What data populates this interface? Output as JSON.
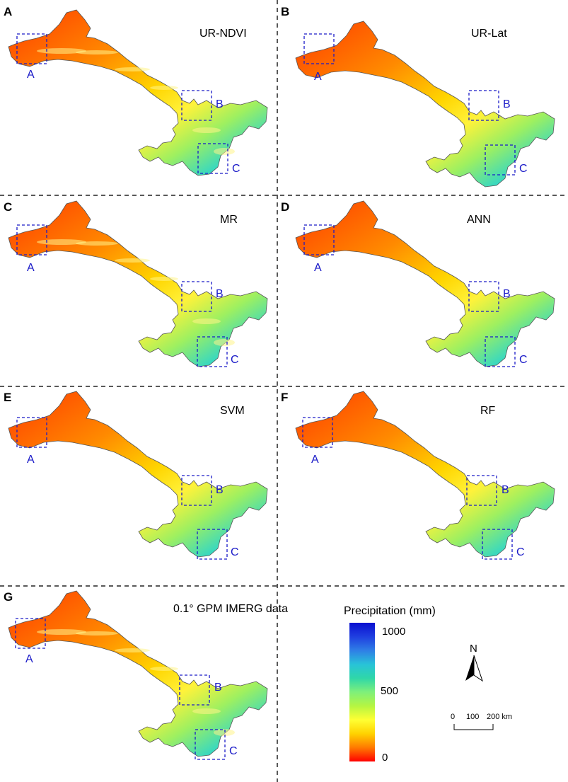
{
  "panels": [
    {
      "letter": "A",
      "title": "UR-NDVI",
      "shift": 0.1,
      "speckle": true
    },
    {
      "letter": "B",
      "title": "UR-Lat",
      "shift": 0.0,
      "speckle": false
    },
    {
      "letter": "C",
      "title": "MR",
      "shift": 0.08,
      "speckle": true
    },
    {
      "letter": "D",
      "title": "ANN",
      "shift": 0.04,
      "speckle": false
    },
    {
      "letter": "E",
      "title": "SVM",
      "shift": 0.03,
      "speckle": false
    },
    {
      "letter": "F",
      "title": "RF",
      "shift": 0.02,
      "speckle": false
    },
    {
      "letter": "G",
      "title": "0.1° GPM IMERG data",
      "shift": 0.05,
      "speckle": true
    }
  ],
  "box_labels": [
    "A",
    "B",
    "C"
  ],
  "legend": {
    "title": "Precipitation (mm)",
    "ticks": [
      {
        "label": "1000",
        "value": 1000
      },
      {
        "label": "500",
        "value": 500
      },
      {
        "label": "0",
        "value": 0
      }
    ],
    "colors": [
      "#ff0000",
      "#ff7a00",
      "#ffd200",
      "#ffff33",
      "#b5f542",
      "#7ff07a",
      "#2fd7a8",
      "#28c3d8",
      "#2f7fe6",
      "#1f3fe0",
      "#0a10d0"
    ]
  },
  "north_arrow": {
    "label": "N"
  },
  "scale_bar": {
    "labels": [
      "0",
      "100",
      "200 km"
    ]
  },
  "colors": {
    "divider": "#222222",
    "box": "#1a1ac8"
  }
}
